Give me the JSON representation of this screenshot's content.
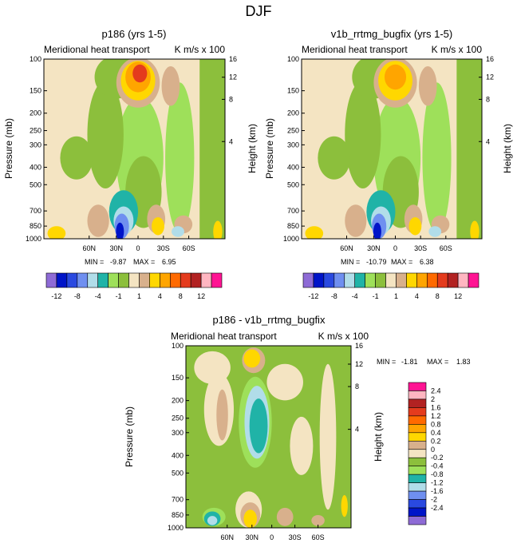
{
  "figure_title": "DJF",
  "palette": {
    "-12": "#8e6bd6",
    "-8": "#0014c8",
    "-6": "#2a49e0",
    "-4": "#6f8ff0",
    "-3": "#b1dde9",
    "-2": "#20b3a7",
    "-1": "#9ee05a",
    "0": "#8cbf3c",
    "1": "#f4e4c2",
    "2": "#d8b08c",
    "3": "#ffd700",
    "4": "#ffa500",
    "6": "#ff6a00",
    "8": "#e43b1d",
    "10": "#b22222",
    "12": "#ffb6c1",
    "14": "#ff1493"
  },
  "chart_data": [
    {
      "type": "heatmap",
      "title": "p186 (yrs 1-5)",
      "left_label": "Meridional heat transport",
      "right_label": "K m/s x 100",
      "ylabel": "Pressure (mb)",
      "ylabel_right": "Height (km)",
      "y_ticks": [
        "100",
        "150",
        "200",
        "250",
        "300",
        "400",
        "500",
        "700",
        "850",
        "1000"
      ],
      "y_ticks_right": [
        "16",
        "12",
        "8",
        "4"
      ],
      "x_ticks": [
        "60N",
        "30N",
        "0",
        "30S",
        "60S"
      ],
      "min_label": "MIN =",
      "min_value": "-9.87",
      "max_label": "MAX =",
      "max_value": "6.95",
      "features": [
        {
          "x": 0.53,
          "y": 0.55,
          "rx": 0.13,
          "ry": 0.34,
          "v": -1
        },
        {
          "x": 0.34,
          "y": 0.42,
          "rx": 0.1,
          "ry": 0.3,
          "v": 0
        },
        {
          "x": 0.75,
          "y": 0.55,
          "rx": 0.08,
          "ry": 0.42,
          "v": -1
        },
        {
          "x": 0.4,
          "y": 0.1,
          "rx": 0.12,
          "ry": 0.12,
          "v": 0
        },
        {
          "x": 0.18,
          "y": 0.55,
          "rx": 0.09,
          "ry": 0.12,
          "v": 0
        },
        {
          "x": 0.7,
          "y": 0.15,
          "rx": 0.05,
          "ry": 0.11,
          "v": 2
        },
        {
          "x": 0.52,
          "y": 0.13,
          "rx": 0.12,
          "ry": 0.14,
          "v": 2
        },
        {
          "x": 0.52,
          "y": 0.12,
          "rx": 0.095,
          "ry": 0.11,
          "v": 3
        },
        {
          "x": 0.52,
          "y": 0.1,
          "rx": 0.07,
          "ry": 0.085,
          "v": 4
        },
        {
          "x": 0.53,
          "y": 0.08,
          "rx": 0.04,
          "ry": 0.05,
          "v": 8
        },
        {
          "x": 0.55,
          "y": 0.74,
          "rx": 0.1,
          "ry": 0.2,
          "v": 0
        },
        {
          "x": 0.44,
          "y": 0.85,
          "rx": 0.08,
          "ry": 0.12,
          "v": -2
        },
        {
          "x": 0.44,
          "y": 0.9,
          "rx": 0.055,
          "ry": 0.08,
          "v": -3
        },
        {
          "x": 0.43,
          "y": 0.93,
          "rx": 0.04,
          "ry": 0.07,
          "v": -4
        },
        {
          "x": 0.42,
          "y": 0.96,
          "rx": 0.022,
          "ry": 0.05,
          "v": -8
        },
        {
          "x": 0.3,
          "y": 0.9,
          "rx": 0.06,
          "ry": 0.09,
          "v": 2
        },
        {
          "x": 0.62,
          "y": 0.89,
          "rx": 0.05,
          "ry": 0.08,
          "v": 2
        },
        {
          "x": 0.63,
          "y": 0.93,
          "rx": 0.035,
          "ry": 0.05,
          "v": 3
        },
        {
          "x": 0.77,
          "y": 0.92,
          "rx": 0.05,
          "ry": 0.05,
          "v": 2
        },
        {
          "x": 0.74,
          "y": 0.96,
          "rx": 0.035,
          "ry": 0.03,
          "v": -3
        },
        {
          "x": 0.07,
          "y": 0.97,
          "rx": 0.05,
          "ry": 0.04,
          "v": 3
        },
        {
          "x": 0.96,
          "y": 0.96,
          "rx": 0.025,
          "ry": 0.06,
          "v": 3
        }
      ]
    },
    {
      "type": "heatmap",
      "title": "v1b_rrtmg_bugfix (yrs 1-5)",
      "left_label": "Meridional heat transport",
      "right_label": "K m/s x 100",
      "ylabel": "Pressure (mb)",
      "ylabel_right": "Height (km)",
      "y_ticks": [
        "100",
        "150",
        "200",
        "250",
        "300",
        "400",
        "500",
        "700",
        "850",
        "1000"
      ],
      "y_ticks_right": [
        "16",
        "12",
        "8",
        "4"
      ],
      "x_ticks": [
        "60N",
        "30N",
        "0",
        "30S",
        "60S"
      ],
      "min_label": "MIN =",
      "min_value": "-10.79",
      "max_label": "MAX =",
      "max_value": "6.38",
      "features": [
        {
          "x": 0.53,
          "y": 0.55,
          "rx": 0.13,
          "ry": 0.34,
          "v": -1
        },
        {
          "x": 0.34,
          "y": 0.42,
          "rx": 0.1,
          "ry": 0.3,
          "v": 0
        },
        {
          "x": 0.75,
          "y": 0.55,
          "rx": 0.08,
          "ry": 0.42,
          "v": -1
        },
        {
          "x": 0.4,
          "y": 0.1,
          "rx": 0.12,
          "ry": 0.12,
          "v": 0
        },
        {
          "x": 0.18,
          "y": 0.55,
          "rx": 0.09,
          "ry": 0.12,
          "v": 0
        },
        {
          "x": 0.7,
          "y": 0.15,
          "rx": 0.05,
          "ry": 0.11,
          "v": 2
        },
        {
          "x": 0.52,
          "y": 0.13,
          "rx": 0.12,
          "ry": 0.14,
          "v": 2
        },
        {
          "x": 0.52,
          "y": 0.12,
          "rx": 0.095,
          "ry": 0.11,
          "v": 3
        },
        {
          "x": 0.52,
          "y": 0.1,
          "rx": 0.06,
          "ry": 0.07,
          "v": 4
        },
        {
          "x": 0.55,
          "y": 0.74,
          "rx": 0.1,
          "ry": 0.2,
          "v": 0
        },
        {
          "x": 0.44,
          "y": 0.85,
          "rx": 0.08,
          "ry": 0.12,
          "v": -2
        },
        {
          "x": 0.44,
          "y": 0.9,
          "rx": 0.055,
          "ry": 0.08,
          "v": -3
        },
        {
          "x": 0.43,
          "y": 0.93,
          "rx": 0.04,
          "ry": 0.07,
          "v": -4
        },
        {
          "x": 0.42,
          "y": 0.96,
          "rx": 0.022,
          "ry": 0.05,
          "v": -8
        },
        {
          "x": 0.3,
          "y": 0.9,
          "rx": 0.06,
          "ry": 0.09,
          "v": 2
        },
        {
          "x": 0.62,
          "y": 0.89,
          "rx": 0.05,
          "ry": 0.08,
          "v": 2
        },
        {
          "x": 0.63,
          "y": 0.93,
          "rx": 0.035,
          "ry": 0.05,
          "v": 3
        },
        {
          "x": 0.77,
          "y": 0.92,
          "rx": 0.05,
          "ry": 0.05,
          "v": 2
        },
        {
          "x": 0.74,
          "y": 0.96,
          "rx": 0.035,
          "ry": 0.03,
          "v": -3
        },
        {
          "x": 0.07,
          "y": 0.97,
          "rx": 0.05,
          "ry": 0.04,
          "v": 3
        },
        {
          "x": 0.96,
          "y": 0.96,
          "rx": 0.025,
          "ry": 0.06,
          "v": 3
        }
      ]
    },
    {
      "type": "heatmap",
      "title": "p186 - v1b_rrtmg_bugfix",
      "left_label": "Meridional heat transport",
      "right_label": "K m/s x 100",
      "ylabel": "Pressure (mb)",
      "ylabel_right": "Height (km)",
      "y_ticks": [
        "100",
        "150",
        "200",
        "250",
        "300",
        "400",
        "500",
        "700",
        "850",
        "1000"
      ],
      "y_ticks_right": [
        "16",
        "12",
        "8",
        "4"
      ],
      "x_ticks": [
        "60N",
        "30N",
        "0",
        "30S",
        "60S"
      ],
      "min_label": "MIN =",
      "min_value": "-1.81",
      "max_label": "MAX =",
      "max_value": "1.83",
      "features": [
        {
          "x": 0.16,
          "y": 0.12,
          "rx": 0.11,
          "ry": 0.09,
          "v": 1
        },
        {
          "x": 0.2,
          "y": 0.35,
          "rx": 0.09,
          "ry": 0.2,
          "v": 1
        },
        {
          "x": 0.22,
          "y": 0.38,
          "rx": 0.035,
          "ry": 0.14,
          "v": 2
        },
        {
          "x": 0.6,
          "y": 0.2,
          "rx": 0.11,
          "ry": 0.1,
          "v": 1
        },
        {
          "x": 0.7,
          "y": 0.55,
          "rx": 0.07,
          "ry": 0.16,
          "v": 1
        },
        {
          "x": 0.86,
          "y": 0.5,
          "rx": 0.05,
          "ry": 0.4,
          "v": 1
        },
        {
          "x": 0.42,
          "y": 0.42,
          "rx": 0.1,
          "ry": 0.25,
          "v": -1
        },
        {
          "x": 0.43,
          "y": 0.42,
          "rx": 0.075,
          "ry": 0.2,
          "v": -3
        },
        {
          "x": 0.44,
          "y": 0.44,
          "rx": 0.055,
          "ry": 0.15,
          "v": -2
        },
        {
          "x": 0.41,
          "y": 0.08,
          "rx": 0.07,
          "ry": 0.07,
          "v": 2
        },
        {
          "x": 0.4,
          "y": 0.07,
          "rx": 0.05,
          "ry": 0.05,
          "v": 3
        },
        {
          "x": 0.38,
          "y": 0.9,
          "rx": 0.08,
          "ry": 0.1,
          "v": 1
        },
        {
          "x": 0.39,
          "y": 0.93,
          "rx": 0.06,
          "ry": 0.07,
          "v": 2
        },
        {
          "x": 0.39,
          "y": 0.95,
          "rx": 0.04,
          "ry": 0.05,
          "v": 3
        },
        {
          "x": 0.17,
          "y": 0.94,
          "rx": 0.07,
          "ry": 0.05,
          "v": -1
        },
        {
          "x": 0.16,
          "y": 0.95,
          "rx": 0.05,
          "ry": 0.04,
          "v": -2
        },
        {
          "x": 0.16,
          "y": 0.96,
          "rx": 0.03,
          "ry": 0.025,
          "v": -3
        },
        {
          "x": 0.6,
          "y": 0.94,
          "rx": 0.05,
          "ry": 0.05,
          "v": 2
        },
        {
          "x": 0.8,
          "y": 0.96,
          "rx": 0.04,
          "ry": 0.03,
          "v": 2
        },
        {
          "x": 0.96,
          "y": 0.88,
          "rx": 0.02,
          "ry": 0.06,
          "v": 3
        }
      ]
    }
  ],
  "colorbar_top": {
    "labels": [
      "-12",
      "-8",
      "-4",
      "-1",
      "1",
      "4",
      "8",
      "12"
    ],
    "colors": [
      "#8e6bd6",
      "#0014c8",
      "#2a49e0",
      "#6f8ff0",
      "#b1dde9",
      "#20b3a7",
      "#9ee05a",
      "#8cbf3c",
      "#f4e4c2",
      "#d8b08c",
      "#ffd700",
      "#ffa500",
      "#ff6a00",
      "#e43b1d",
      "#b22222",
      "#ffb6c1",
      "#ff1493"
    ]
  },
  "colorbar_diff": {
    "labels": [
      "2.4",
      "2",
      "1.6",
      "1.2",
      "0.8",
      "0.4",
      "0.2",
      "0",
      "-0.2",
      "-0.4",
      "-0.8",
      "-1.2",
      "-1.6",
      "-2",
      "-2.4"
    ],
    "colors": [
      "#ff1493",
      "#ffb6c1",
      "#b22222",
      "#e43b1d",
      "#ff6a00",
      "#ffa500",
      "#ffd700",
      "#d8b08c",
      "#f4e4c2",
      "#8cbf3c",
      "#9ee05a",
      "#20b3a7",
      "#b1dde9",
      "#6f8ff0",
      "#2a49e0",
      "#0014c8",
      "#8e6bd6"
    ]
  }
}
